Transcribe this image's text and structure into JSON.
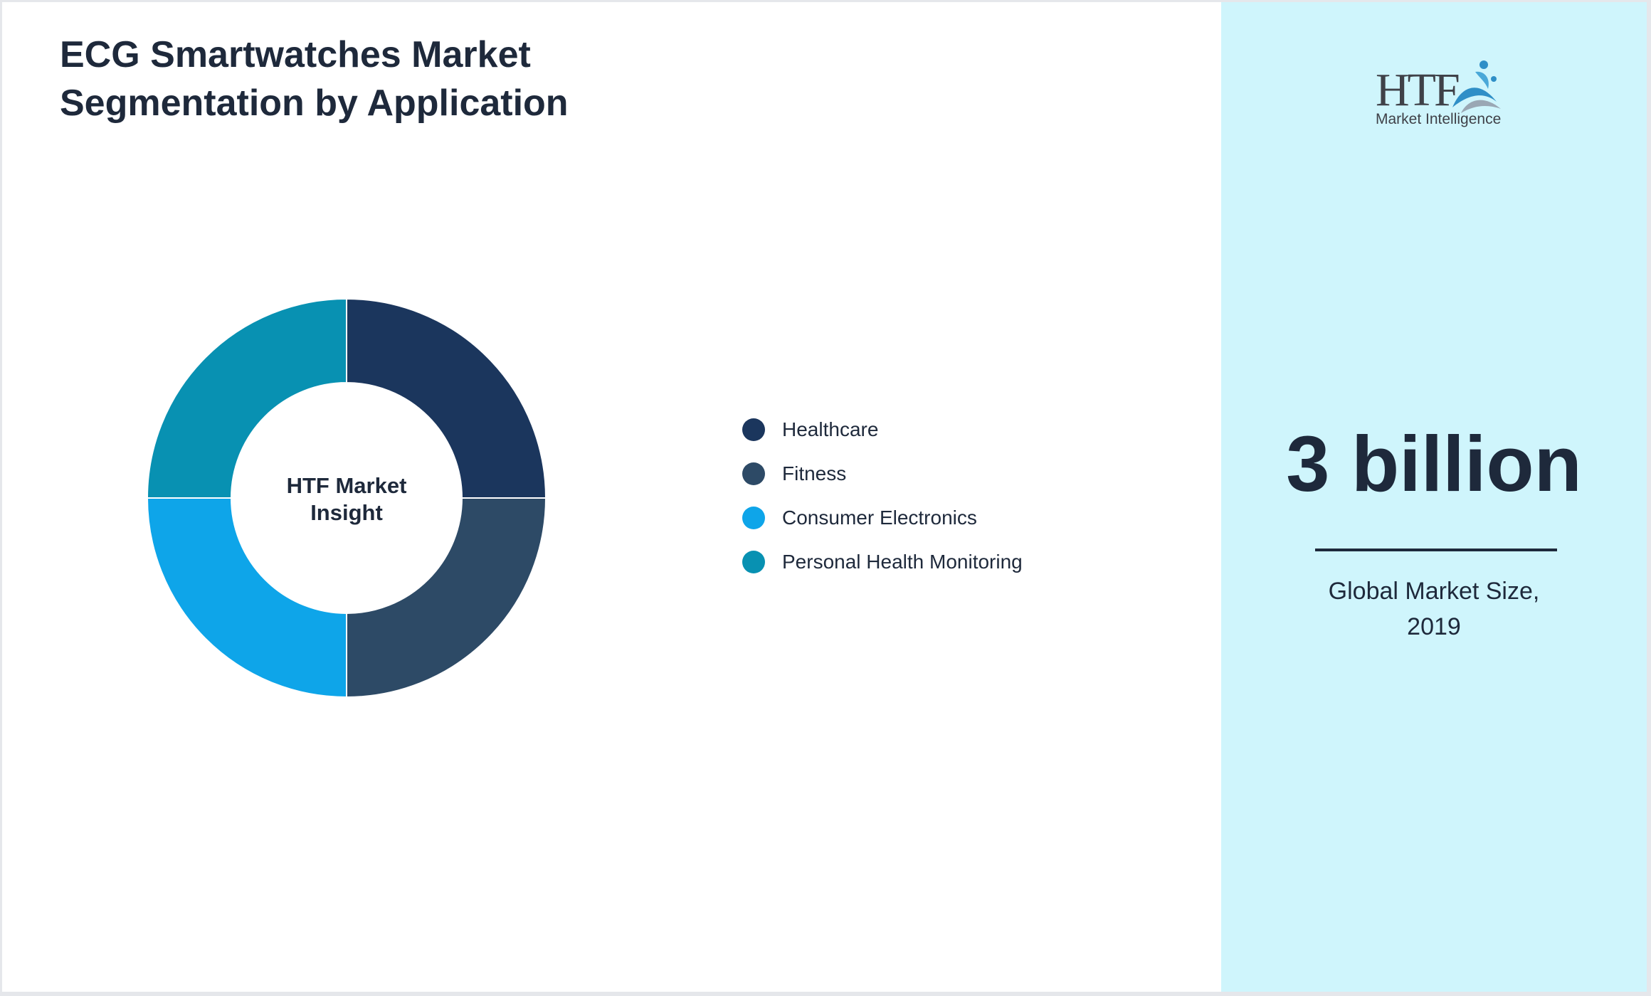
{
  "title": {
    "line1": "ECG Smartwatches Market",
    "line2": "Segmentation by Application"
  },
  "chart_data": {
    "type": "pie",
    "variant": "donut",
    "center_label": [
      "HTF Market",
      "Insight"
    ],
    "categories": [
      "Healthcare",
      "Fitness",
      "Consumer Electronics",
      "Personal Health Monitoring"
    ],
    "values": [
      25,
      25,
      25,
      25
    ],
    "colors": [
      "#1b365d",
      "#2d4a66",
      "#0ea5e9",
      "#0891b2"
    ],
    "legend_position": "right"
  },
  "sidebar": {
    "logo": {
      "wordmark": "HTF",
      "subtitle": "Market Intelligence",
      "icon": "htf-dolphin-logo-icon"
    },
    "market_size": "3 billion",
    "caption_line1": "Global Market Size,",
    "caption_line2": "2019"
  }
}
